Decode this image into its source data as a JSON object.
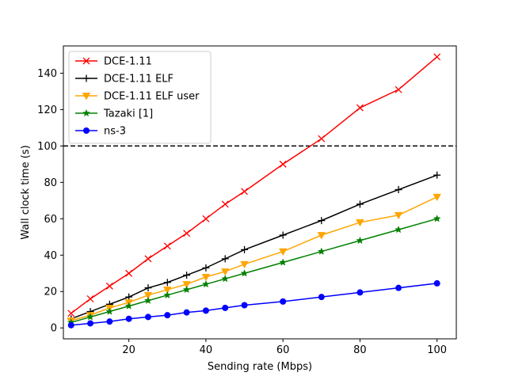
{
  "chart_data": {
    "type": "line",
    "title": "",
    "xlabel": "Sending rate (Mbps)",
    "ylabel": "Wall clock time (s)",
    "xlim": [
      3,
      105
    ],
    "ylim": [
      -6,
      155
    ],
    "xticks": [
      20,
      40,
      60,
      80,
      100
    ],
    "yticks": [
      0,
      20,
      40,
      60,
      80,
      100,
      120,
      140
    ],
    "grid": false,
    "legend_position": "top-left",
    "reference_line": {
      "y": 100,
      "style": "dashed",
      "color": "#000000"
    },
    "x": [
      5,
      10,
      15,
      20,
      25,
      30,
      35,
      40,
      45,
      50,
      60,
      70,
      80,
      90,
      100
    ],
    "series": [
      {
        "name": "DCE-1.11",
        "color": "#ff0000",
        "marker": "x",
        "values": [
          8,
          16,
          23,
          30,
          38,
          45,
          52,
          60,
          68,
          75,
          90,
          104,
          121,
          131,
          149
        ]
      },
      {
        "name": "DCE-1.11 ELF",
        "color": "#000000",
        "marker": "plus",
        "values": [
          5,
          9,
          13,
          17,
          22,
          25,
          29,
          33,
          38,
          43,
          51,
          59,
          68,
          76,
          84
        ]
      },
      {
        "name": "DCE-1.11 ELF user",
        "color": "#ffa500",
        "marker": "triangle-down",
        "values": [
          4,
          7,
          11,
          14,
          18,
          21,
          24,
          28,
          31,
          35,
          42,
          51,
          58,
          62,
          72
        ]
      },
      {
        "name": "Tazaki [1]",
        "color": "#008000",
        "marker": "star",
        "values": [
          3,
          6,
          9,
          12,
          15,
          18,
          21,
          24,
          27,
          30,
          36,
          42,
          48,
          54,
          60
        ]
      },
      {
        "name": "ns-3",
        "color": "#0000ff",
        "marker": "circle",
        "values": [
          1.5,
          2.5,
          3.5,
          5,
          6,
          7,
          8.5,
          9.5,
          11,
          12.5,
          14.5,
          17,
          19.5,
          22,
          24.5
        ]
      }
    ]
  }
}
